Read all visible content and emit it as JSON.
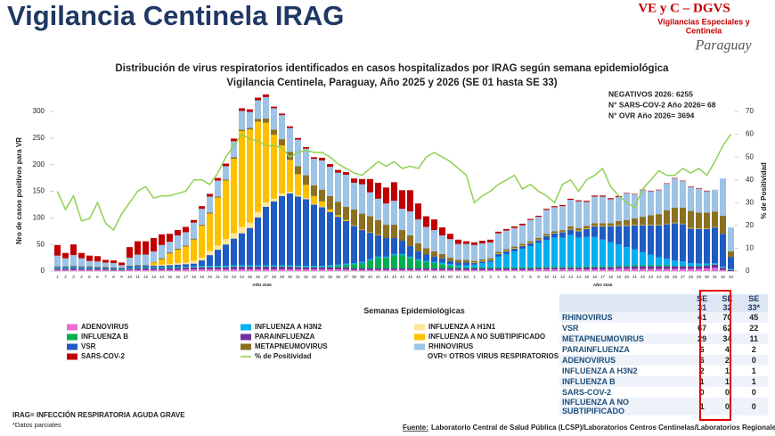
{
  "header": {
    "title": "Vigilancia Centinela IRAG"
  },
  "logo": {
    "title": "VE y C – DGVS",
    "subtitle": [
      "Vigilancias Especiales y",
      "Centinela"
    ],
    "country": "Paraguay"
  },
  "chart_data": {
    "type": "bar",
    "stacked": true,
    "title": [
      "Distribución de virus respiratorios identificados en casos hospitalizados por IRAG según semana epidemiológica",
      "Vigilancia Centinela, Paraguay, Año 2025 y 2026 (SE 01 hasta SE 33)"
    ],
    "annotations": [
      "NEGATIVOS 2026: 6255",
      "N° SARS-COV-2 Año 2026= 68",
      "N° OVR Año 2026= 3694"
    ],
    "ylabel": "Nro de casos positivos para VR",
    "y2label": "% de Positividad",
    "xlabel": "Semanas Epidemiológicas",
    "year_labels": [
      "AÑO 2025",
      "AÑO 2026"
    ],
    "categories": [
      1,
      2,
      3,
      4,
      5,
      6,
      7,
      8,
      9,
      10,
      11,
      12,
      13,
      14,
      15,
      16,
      17,
      18,
      19,
      20,
      21,
      22,
      23,
      24,
      25,
      26,
      27,
      28,
      29,
      30,
      31,
      32,
      33,
      34,
      35,
      36,
      37,
      38,
      39,
      40,
      41,
      42,
      43,
      44,
      45,
      46,
      47,
      48,
      49,
      50,
      51,
      52,
      1,
      2,
      3,
      4,
      5,
      6,
      7,
      8,
      9,
      10,
      11,
      12,
      13,
      14,
      15,
      16,
      17,
      18,
      19,
      20,
      21,
      22,
      23,
      24,
      25,
      26,
      27,
      28,
      29,
      30,
      31,
      32,
      33
    ],
    "ylim": [
      0,
      300
    ],
    "yticks": [
      0,
      50,
      100,
      150,
      200,
      250,
      300
    ],
    "y2lim": [
      0,
      70
    ],
    "y2ticks": [
      0,
      10,
      20,
      30,
      40,
      50,
      60,
      70
    ],
    "series": [
      {
        "name": "ADENOVIRUS",
        "color": "#f06bd6",
        "values": [
          2,
          2,
          2,
          2,
          2,
          2,
          2,
          1,
          1,
          2,
          2,
          2,
          2,
          2,
          2,
          2,
          3,
          3,
          3,
          3,
          3,
          3,
          3,
          3,
          3,
          3,
          3,
          3,
          3,
          3,
          3,
          3,
          3,
          3,
          3,
          3,
          3,
          2,
          2,
          2,
          2,
          2,
          2,
          2,
          2,
          2,
          2,
          2,
          2,
          2,
          2,
          2,
          2,
          2,
          2,
          2,
          2,
          2,
          2,
          2,
          3,
          3,
          3,
          3,
          3,
          3,
          3,
          3,
          3,
          3,
          4,
          4,
          4,
          4,
          4,
          4,
          4,
          4,
          4,
          4,
          4,
          5,
          6,
          2,
          0
        ]
      },
      {
        "name": "PARAINFLUENZA",
        "color": "#7030a0",
        "values": [
          2,
          2,
          3,
          2,
          2,
          2,
          2,
          2,
          1,
          2,
          3,
          3,
          3,
          3,
          3,
          3,
          3,
          4,
          4,
          4,
          4,
          4,
          5,
          5,
          5,
          5,
          5,
          5,
          5,
          5,
          4,
          4,
          4,
          4,
          4,
          4,
          4,
          3,
          3,
          3,
          3,
          3,
          3,
          3,
          3,
          3,
          3,
          3,
          3,
          3,
          3,
          3,
          3,
          3,
          3,
          3,
          3,
          3,
          3,
          3,
          3,
          3,
          3,
          3,
          3,
          3,
          4,
          4,
          4,
          4,
          4,
          4,
          5,
          5,
          5,
          5,
          5,
          5,
          5,
          5,
          5,
          5,
          6,
          4,
          2
        ]
      },
      {
        "name": "INFLUENZA B",
        "color": "#00b050",
        "values": [
          1,
          1,
          1,
          1,
          1,
          1,
          1,
          1,
          1,
          1,
          1,
          1,
          1,
          1,
          1,
          1,
          1,
          1,
          1,
          1,
          1,
          1,
          1,
          1,
          1,
          1,
          1,
          1,
          1,
          1,
          1,
          1,
          1,
          1,
          2,
          3,
          5,
          8,
          10,
          15,
          20,
          20,
          25,
          25,
          20,
          15,
          12,
          10,
          8,
          5,
          3,
          2,
          2,
          2,
          2,
          2,
          2,
          2,
          2,
          2,
          2,
          2,
          2,
          2,
          2,
          2,
          2,
          2,
          2,
          2,
          2,
          2,
          2,
          2,
          2,
          2,
          2,
          1,
          1,
          1,
          1,
          1,
          1,
          1,
          1
        ]
      },
      {
        "name": "INFLUENZA A H3N2",
        "color": "#00b0f0",
        "values": [
          1,
          1,
          1,
          1,
          1,
          0,
          0,
          0,
          0,
          1,
          1,
          1,
          1,
          1,
          1,
          1,
          1,
          1,
          2,
          2,
          2,
          2,
          2,
          2,
          2,
          2,
          2,
          2,
          2,
          2,
          2,
          2,
          2,
          2,
          2,
          2,
          2,
          2,
          2,
          2,
          2,
          2,
          2,
          2,
          2,
          2,
          2,
          2,
          3,
          3,
          3,
          4,
          5,
          8,
          10,
          20,
          25,
          30,
          35,
          40,
          45,
          50,
          55,
          55,
          60,
          55,
          55,
          55,
          50,
          45,
          40,
          35,
          30,
          25,
          20,
          15,
          12,
          10,
          8,
          5,
          4,
          3,
          2,
          1,
          1
        ]
      },
      {
        "name": "VSR",
        "color": "#1f5bc4",
        "values": [
          2,
          2,
          2,
          2,
          2,
          2,
          2,
          2,
          2,
          3,
          3,
          3,
          3,
          3,
          4,
          5,
          5,
          5,
          10,
          20,
          30,
          40,
          50,
          60,
          70,
          90,
          110,
          120,
          130,
          135,
          130,
          125,
          115,
          110,
          100,
          90,
          80,
          70,
          60,
          50,
          40,
          35,
          30,
          25,
          20,
          15,
          12,
          10,
          8,
          6,
          5,
          5,
          3,
          3,
          3,
          5,
          5,
          5,
          5,
          5,
          5,
          8,
          8,
          10,
          10,
          12,
          15,
          20,
          25,
          30,
          35,
          40,
          45,
          50,
          55,
          60,
          65,
          70,
          70,
          65,
          65,
          65,
          67,
          62,
          22
        ]
      },
      {
        "name": "INFLUENZA A H1N1",
        "color": "#ffe699",
        "values": [
          0,
          0,
          0,
          0,
          0,
          0,
          0,
          0,
          0,
          0,
          0,
          0,
          1,
          2,
          2,
          3,
          3,
          5,
          5,
          8,
          8,
          10,
          10,
          12,
          10,
          10,
          8,
          5,
          5,
          3,
          2,
          2,
          1,
          1,
          0,
          0,
          0,
          0,
          0,
          0,
          0,
          0,
          0,
          0,
          0,
          0,
          0,
          0,
          0,
          0,
          0,
          0,
          0,
          0,
          0,
          0,
          0,
          0,
          0,
          0,
          0,
          0,
          0,
          0,
          0,
          0,
          0,
          0,
          0,
          0,
          0,
          0,
          0,
          0,
          0,
          0,
          0,
          0,
          0,
          0,
          0,
          0,
          0,
          0,
          0
        ]
      },
      {
        "name": "INFLUENZA A NO SUBTIPIFICADO",
        "color": "#ffc000",
        "values": [
          0,
          0,
          0,
          0,
          0,
          0,
          0,
          0,
          0,
          0,
          0,
          0,
          5,
          10,
          20,
          25,
          30,
          40,
          60,
          70,
          90,
          110,
          140,
          180,
          175,
          170,
          150,
          120,
          90,
          60,
          40,
          25,
          15,
          10,
          5,
          3,
          2,
          1,
          1,
          1,
          1,
          0,
          0,
          0,
          0,
          0,
          0,
          0,
          0,
          0,
          0,
          0,
          1,
          1,
          1,
          1,
          1,
          1,
          1,
          1,
          1,
          1,
          1,
          1,
          1,
          1,
          1,
          1,
          1,
          1,
          1,
          1,
          1,
          1,
          1,
          1,
          1,
          1,
          1,
          1,
          1,
          1,
          1,
          0,
          0
        ]
      },
      {
        "name": "METAPNEUMOVIRUS",
        "color": "#8b7021",
        "values": [
          1,
          1,
          1,
          1,
          1,
          1,
          1,
          1,
          1,
          1,
          1,
          1,
          1,
          2,
          2,
          2,
          2,
          2,
          2,
          2,
          2,
          2,
          3,
          3,
          3,
          5,
          8,
          10,
          12,
          15,
          15,
          18,
          20,
          22,
          25,
          25,
          25,
          30,
          30,
          30,
          28,
          25,
          25,
          20,
          20,
          15,
          12,
          10,
          8,
          6,
          5,
          5,
          3,
          3,
          3,
          3,
          3,
          3,
          3,
          3,
          3,
          3,
          3,
          3,
          5,
          5,
          5,
          5,
          5,
          5,
          8,
          10,
          12,
          15,
          18,
          20,
          25,
          28,
          30,
          32,
          30,
          30,
          29,
          34,
          11
        ]
      },
      {
        "name": "RHINOVIRUS",
        "color": "#9dc3e6",
        "values": [
          20,
          15,
          20,
          15,
          10,
          10,
          8,
          8,
          5,
          15,
          20,
          20,
          20,
          25,
          20,
          25,
          25,
          30,
          30,
          30,
          30,
          25,
          30,
          35,
          30,
          35,
          40,
          40,
          45,
          45,
          50,
          50,
          50,
          55,
          55,
          55,
          60,
          50,
          55,
          45,
          40,
          40,
          45,
          40,
          45,
          45,
          40,
          40,
          35,
          35,
          30,
          30,
          30,
          30,
          30,
          35,
          35,
          35,
          35,
          40,
          40,
          45,
          45,
          45,
          50,
          50,
          45,
          50,
          50,
          45,
          45,
          50,
          45,
          50,
          45,
          45,
          50,
          55,
          50,
          45,
          45,
          40,
          41,
          70,
          45
        ]
      },
      {
        "name": "SARS-COV-2",
        "color": "#c00000",
        "values": [
          20,
          10,
          20,
          10,
          10,
          10,
          5,
          5,
          5,
          20,
          25,
          25,
          25,
          20,
          15,
          10,
          10,
          5,
          5,
          5,
          5,
          5,
          5,
          5,
          5,
          5,
          5,
          3,
          3,
          3,
          3,
          3,
          3,
          5,
          5,
          5,
          5,
          8,
          10,
          25,
          30,
          30,
          35,
          35,
          40,
          30,
          20,
          20,
          15,
          10,
          8,
          5,
          5,
          5,
          5,
          3,
          3,
          3,
          3,
          2,
          2,
          2,
          2,
          2,
          2,
          2,
          2,
          2,
          2,
          2,
          2,
          1,
          1,
          1,
          1,
          1,
          1,
          1,
          1,
          1,
          1,
          1,
          0,
          0,
          0
        ]
      },
      {
        "name": "% de Positividad",
        "type": "line",
        "axis": "y2",
        "color": "#8fd14f",
        "values": [
          35,
          27,
          33,
          22,
          23,
          30,
          21,
          18,
          25,
          30,
          35,
          37,
          32,
          33,
          33,
          34,
          35,
          40,
          40,
          38,
          43,
          50,
          55,
          60,
          58,
          57,
          55,
          55,
          54,
          50,
          52,
          53,
          52,
          52,
          50,
          47,
          45,
          43,
          42,
          45,
          48,
          46,
          48,
          45,
          46,
          45,
          50,
          52,
          50,
          48,
          45,
          42,
          30,
          33,
          35,
          38,
          40,
          42,
          36,
          38,
          35,
          33,
          30,
          38,
          40,
          35,
          40,
          42,
          45,
          37,
          33,
          30,
          28,
          36,
          40,
          44,
          42,
          42,
          45,
          43,
          45,
          42,
          48,
          55,
          60
        ]
      }
    ],
    "legend_note": "OVR= OTROS VIRUS RESPIRATORIOS"
  },
  "table": {
    "columns": [
      "SE 31",
      "SE 32",
      "SE 33*"
    ],
    "rows": [
      [
        "RHINOVIRUS",
        "41",
        "70",
        "45"
      ],
      [
        "VSR",
        "67",
        "62",
        "22"
      ],
      [
        "METAPNEUMOVIRUS",
        "29",
        "34",
        "11"
      ],
      [
        "PARAINFLUENZA",
        "6",
        "4",
        "2"
      ],
      [
        "ADENOVIRUS",
        "6",
        "2",
        "0"
      ],
      [
        "INFLUENZA A H3N2",
        "2",
        "1",
        "1"
      ],
      [
        "INFLUENZA B",
        "1",
        "1",
        "1"
      ],
      [
        "SARS-COV-2",
        "0",
        "0",
        "0"
      ],
      [
        "INFLUENZA A NO SUBTIPIFICADO",
        "1",
        "0",
        "0"
      ]
    ]
  },
  "footer": {
    "notes": [
      "IRAG= INFECCIÓN RESPIRATORIA AGUDA GRAVE",
      "*Datos parciales"
    ],
    "source_label": "Fuente:",
    "source": "Laboratorio Central de Salud Pública (LCSP)/Laboratorios Centros Centinelas/Laboratorios Regionales"
  }
}
